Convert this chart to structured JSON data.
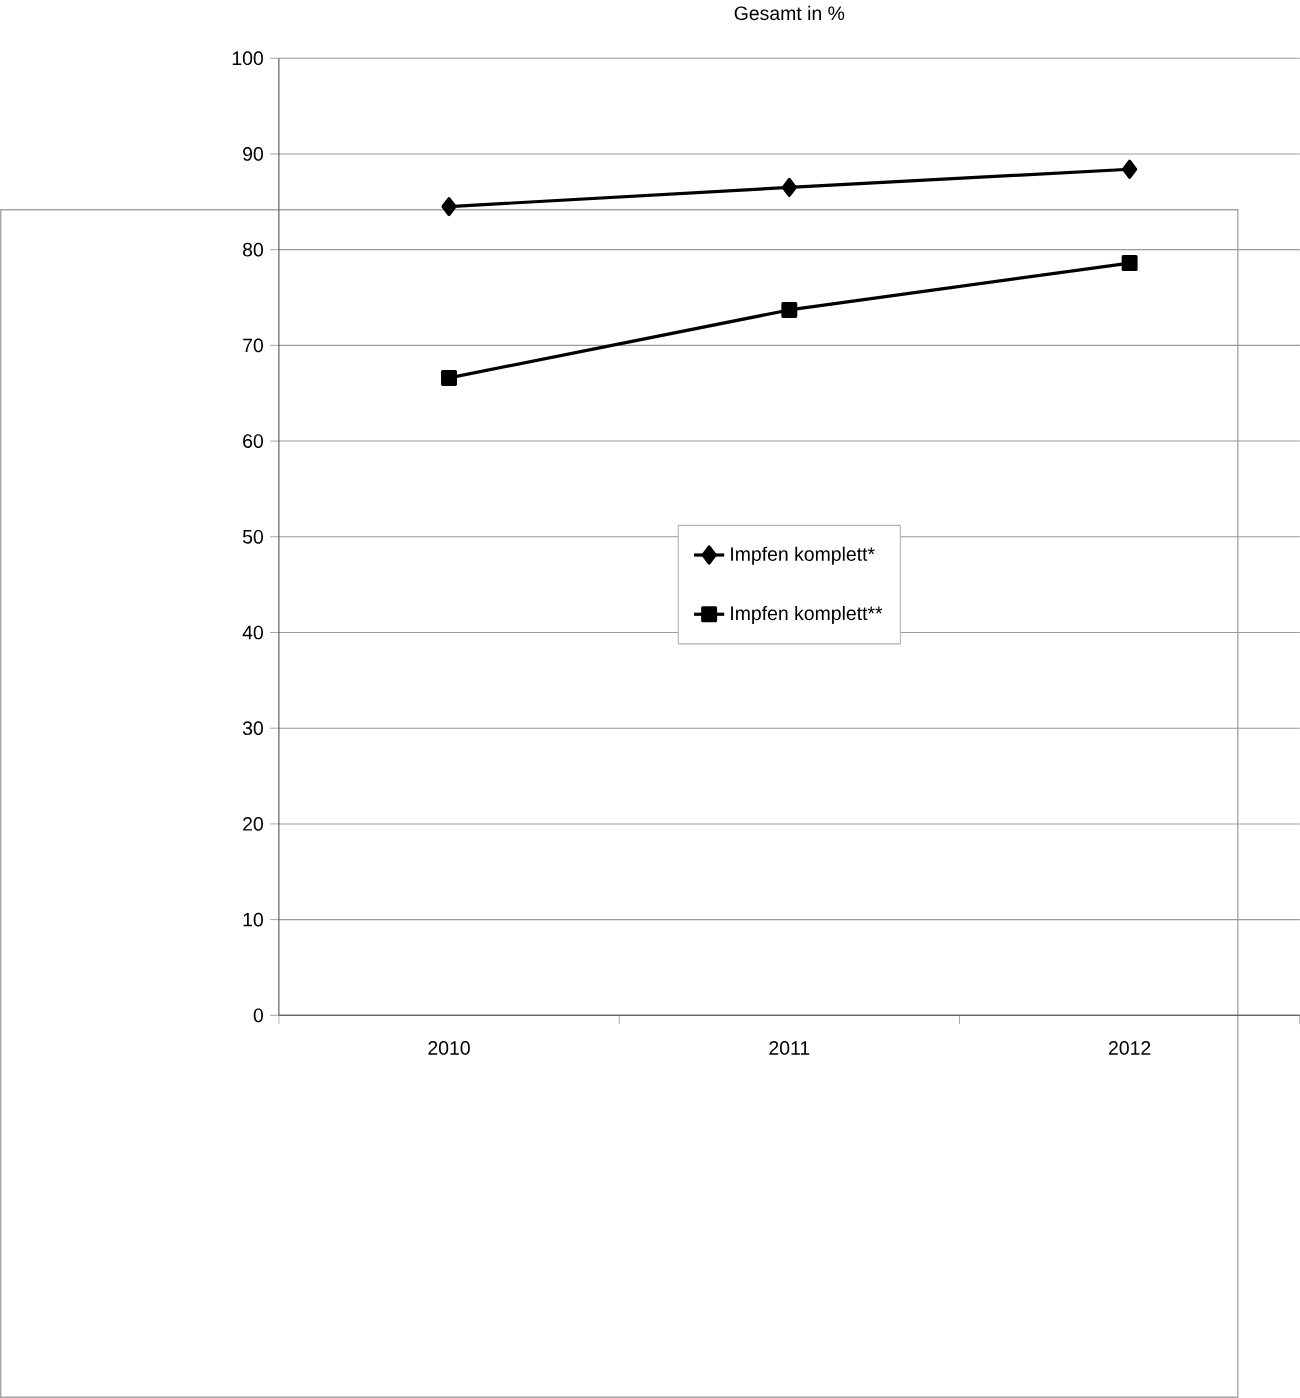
{
  "chart_data": {
    "type": "line",
    "title": "Gesamt in %",
    "categories": [
      "2010",
      "2011",
      "2012"
    ],
    "series": [
      {
        "name": "Impfen komplett*",
        "color": "#000000",
        "marker": "diamond",
        "values": [
          84.5,
          86.5,
          88.4
        ]
      },
      {
        "name": "Impfen komplett**",
        "color": "#000000",
        "marker": "square",
        "values": [
          66.6,
          73.7,
          78.6
        ]
      }
    ],
    "ylim": [
      0,
      100
    ],
    "yticks": [
      0,
      10,
      20,
      30,
      40,
      50,
      60,
      70,
      80,
      90,
      100
    ],
    "grid": "y",
    "legend": "center",
    "line_style": "solid"
  }
}
